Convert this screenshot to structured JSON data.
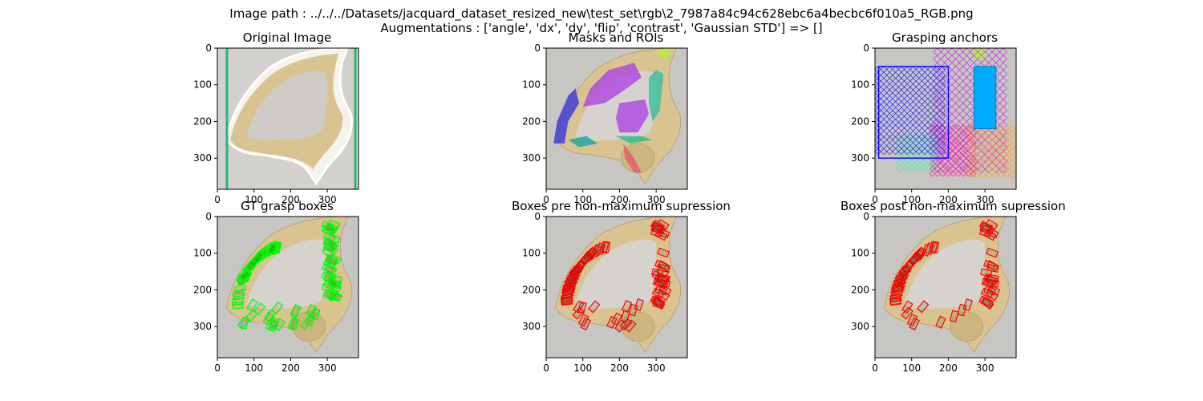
{
  "figure": {
    "suptitle_line1": "Image path : ../../../Datasets/jacquard_dataset_resized_new\\test_set\\rgb\\2_7987a84c94c628ebc6a4becbc6f010a5_RGB.png",
    "suptitle_line2": "Augmentations : ['angle', 'dx', 'dy', 'flip', 'contrast', 'Gaussian STD'] => []"
  },
  "panels": [
    {
      "title": "Original Image"
    },
    {
      "title": "Masks and ROIs"
    },
    {
      "title": "Grasping anchors"
    },
    {
      "title": "GT grasp boxes"
    },
    {
      "title": "Boxes pre non-maximum supression"
    },
    {
      "title": "Boxes post non-maximum supression"
    }
  ],
  "axes": {
    "x_ticks": [
      "0",
      "100",
      "200",
      "300"
    ],
    "y_ticks": [
      "0",
      "100",
      "200",
      "300"
    ]
  },
  "colors": {
    "background_gray": "#c8c6c2",
    "object_tan": "#d9c391",
    "gt_box": "#00ff00",
    "pred_box": "#ff0000",
    "roi_green": "#2db37a"
  }
}
